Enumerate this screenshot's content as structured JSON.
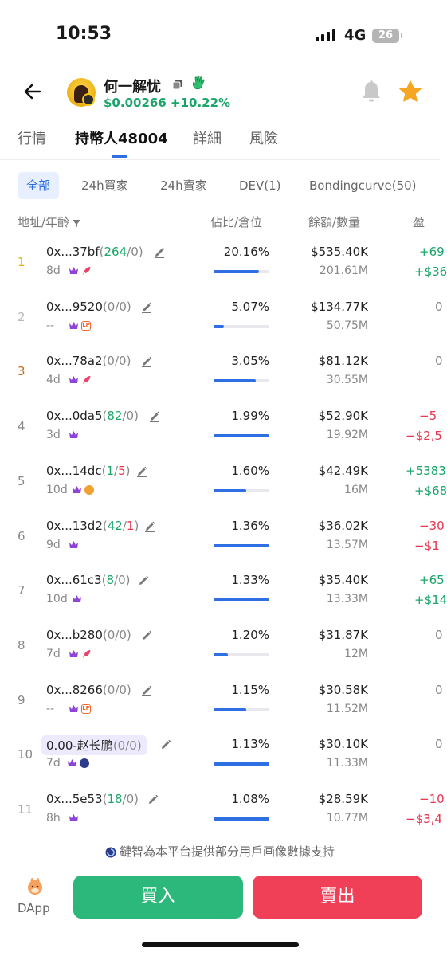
{
  "status_bar": {
    "time": "10:53",
    "network": "4G",
    "battery": "26"
  },
  "header": {
    "token_name": "何一解忧",
    "price": "$0.00266",
    "change": "+10.22%",
    "accent": "#2f6fe4",
    "positive_color": "#1aa56a",
    "negative_color": "#e6364f"
  },
  "tabs": [
    {
      "label": "行情",
      "active": false
    },
    {
      "label": "持幣人48004",
      "active": true
    },
    {
      "label": "詳細",
      "active": false
    },
    {
      "label": "風險",
      "active": false
    }
  ],
  "filters": [
    {
      "label": "全部",
      "active": true
    },
    {
      "label": "24h買家",
      "active": false
    },
    {
      "label": "24h賣家",
      "active": false
    },
    {
      "label": "DEV(1)",
      "active": false
    },
    {
      "label": "Bondingcurve(50)",
      "active": false
    }
  ],
  "columns": {
    "address_age": "地址/年齡",
    "share_position": "佔比/倉位",
    "balance_qty": "餘額/數量",
    "pnl": "盈"
  },
  "holders": [
    {
      "rank": "1",
      "addr": "0x...37bf",
      "buys": "264",
      "sells": "0",
      "age": "8d",
      "badges": [
        "crown",
        "rocket"
      ],
      "pct": "20.16%",
      "position": 0.82,
      "balance": "$535.40K",
      "qty": "201.61M",
      "pnl1": "+69",
      "pnl2": "+$36",
      "pnl_sign": "pos"
    },
    {
      "rank": "2",
      "addr": "0x...9520",
      "buys": "0",
      "sells": "0",
      "age": "--",
      "badges": [
        "crown",
        "lp"
      ],
      "pct": "5.07%",
      "position": 0.18,
      "balance": "$134.77K",
      "qty": "50.75M",
      "pnl1": "0",
      "pnl2": "",
      "pnl_sign": "zero"
    },
    {
      "rank": "3",
      "addr": "0x...78a2",
      "buys": "0",
      "sells": "0",
      "age": "4d",
      "badges": [
        "crown",
        "rocket"
      ],
      "pct": "3.05%",
      "position": 0.76,
      "balance": "$81.12K",
      "qty": "30.55M",
      "pnl1": "0",
      "pnl2": "",
      "pnl_sign": "zero"
    },
    {
      "rank": "4",
      "addr": "0x...0da5",
      "buys": "82",
      "sells": "0",
      "age": "3d",
      "badges": [
        "crown"
      ],
      "pct": "1.99%",
      "position": 1.0,
      "balance": "$52.90K",
      "qty": "19.92M",
      "pnl1": "−5",
      "pnl2": "−$2,5",
      "pnl_sign": "neg"
    },
    {
      "rank": "5",
      "addr": "0x...14dc",
      "buys": "1",
      "sells": "5",
      "age": "10d",
      "badges": [
        "crown",
        "bag"
      ],
      "pct": "1.60%",
      "position": 0.58,
      "balance": "$42.49K",
      "qty": "16M",
      "pnl1": "+5383",
      "pnl2": "+$68",
      "pnl_sign": "pos"
    },
    {
      "rank": "6",
      "addr": "0x...13d2",
      "buys": "42",
      "sells": "1",
      "age": "9d",
      "badges": [
        "crown"
      ],
      "pct": "1.36%",
      "position": 1.0,
      "balance": "$36.02K",
      "qty": "13.57M",
      "pnl1": "−30",
      "pnl2": "−$1",
      "pnl_sign": "neg"
    },
    {
      "rank": "7",
      "addr": "0x...61c3",
      "buys": "8",
      "sells": "0",
      "age": "10d",
      "badges": [
        "crown"
      ],
      "pct": "1.33%",
      "position": 1.0,
      "balance": "$35.40K",
      "qty": "13.33M",
      "pnl1": "+65",
      "pnl2": "+$14",
      "pnl_sign": "pos"
    },
    {
      "rank": "8",
      "addr": "0x...b280",
      "buys": "0",
      "sells": "0",
      "age": "7d",
      "badges": [
        "crown",
        "rocket"
      ],
      "pct": "1.20%",
      "position": 0.25,
      "balance": "$31.87K",
      "qty": "12M",
      "pnl1": "0",
      "pnl2": "",
      "pnl_sign": "zero"
    },
    {
      "rank": "9",
      "addr": "0x...8266",
      "buys": "0",
      "sells": "0",
      "age": "--",
      "badges": [
        "crown",
        "lp"
      ],
      "pct": "1.15%",
      "position": 0.58,
      "balance": "$30.58K",
      "qty": "11.52M",
      "pnl1": "0",
      "pnl2": "",
      "pnl_sign": "zero"
    },
    {
      "rank": "10",
      "addr": "0.00-赵长鹏",
      "named": true,
      "buys": "0",
      "sells": "0",
      "age": "7d",
      "badges": [
        "crown",
        "dot"
      ],
      "pct": "1.13%",
      "position": 1.0,
      "balance": "$30.10K",
      "qty": "11.33M",
      "pnl1": "0",
      "pnl2": "",
      "pnl_sign": "zero"
    },
    {
      "rank": "11",
      "addr": "0x...5e53",
      "buys": "18",
      "sells": "0",
      "age": "8h",
      "badges": [
        "crown"
      ],
      "pct": "1.08%",
      "position": 1.0,
      "balance": "$28.59K",
      "qty": "10.77M",
      "pnl1": "−10",
      "pnl2": "−$3,4",
      "pnl_sign": "neg"
    }
  ],
  "footer": {
    "notice": "鏈智為本平台提供部分用戶画像數據支持",
    "dapp_label": "DApp",
    "buy_label": "買入",
    "sell_label": "賣出"
  }
}
